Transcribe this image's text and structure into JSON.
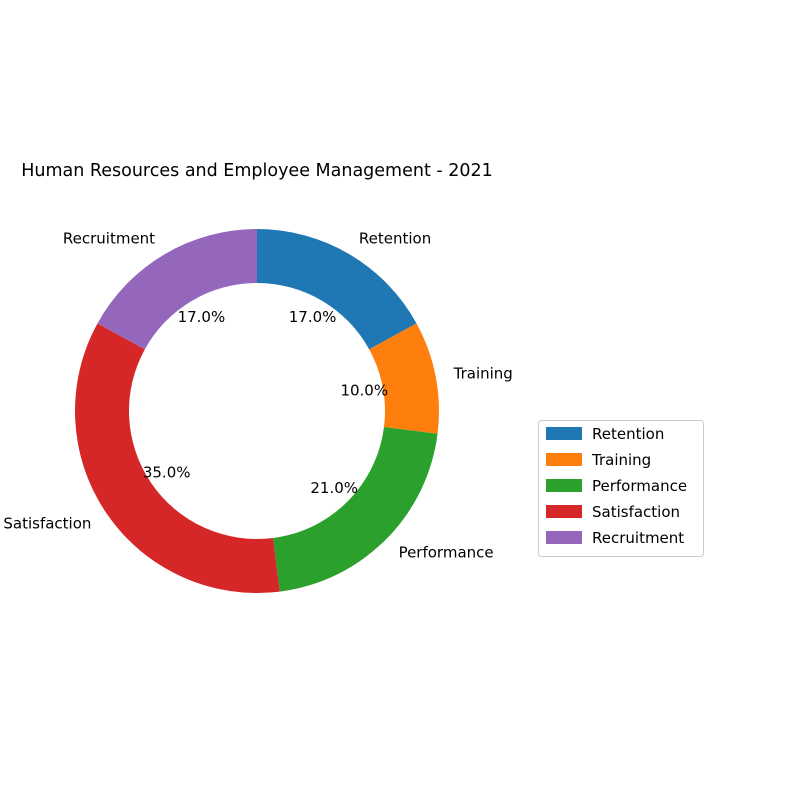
{
  "chart_data": {
    "type": "pie",
    "style": "donut",
    "title": "Human Resources and Employee Management - 2021",
    "categories": [
      "Retention",
      "Training",
      "Performance",
      "Satisfaction",
      "Recruitment"
    ],
    "values": [
      17.0,
      10.0,
      21.0,
      35.0,
      17.0
    ],
    "percent_labels": [
      "17.0%",
      "10.0%",
      "21.0%",
      "35.0%",
      "17.0%"
    ],
    "colors": [
      "#1f77b4",
      "#ff7f0e",
      "#2ca02c",
      "#d62728",
      "#9467bd"
    ],
    "start_angle_deg": 90,
    "direction": "clockwise",
    "legend_position": "right",
    "legend": [
      "Retention",
      "Training",
      "Performance",
      "Satisfaction",
      "Recruitment"
    ]
  }
}
